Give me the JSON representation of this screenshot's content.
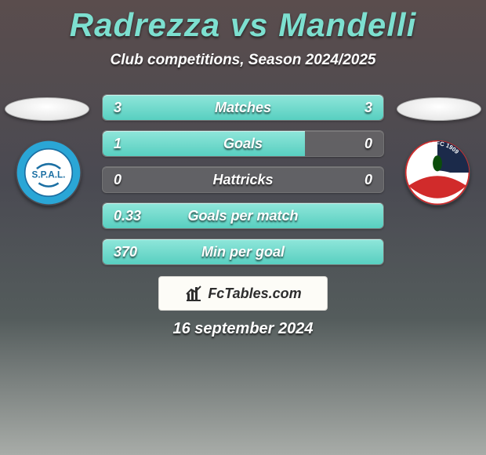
{
  "title": "Radrezza vs Mandelli",
  "subtitle": "Club competitions, Season 2024/2025",
  "date": "16 september 2024",
  "watermark": "FcTables.com",
  "colors": {
    "accent": "#66d4c6",
    "bar_fill": "#58cfc0",
    "bar_bg": "rgba(120,120,120,0.5)",
    "text": "#ffffff"
  },
  "rows": [
    {
      "label": "Matches",
      "left_text": "3",
      "right_text": "3",
      "left_pct": 50,
      "right_pct": 50
    },
    {
      "label": "Goals",
      "left_text": "1",
      "right_text": "0",
      "left_pct": 72,
      "right_pct": 0
    },
    {
      "label": "Hattricks",
      "left_text": "0",
      "right_text": "0",
      "left_pct": 0,
      "right_pct": 0
    },
    {
      "label": "Goals per match",
      "left_text": "0.33",
      "right_text": "",
      "left_pct": 100,
      "right_pct": 0
    },
    {
      "label": "Min per goal",
      "left_text": "370",
      "right_text": "",
      "left_pct": 100,
      "right_pct": 0
    }
  ],
  "badges": {
    "left": {
      "name": "SPAL",
      "ring_color": "#2aa6d6",
      "center_color": "#ffffff",
      "text": "S.P.A.L."
    },
    "right": {
      "name": "Carpi FC 1909",
      "ring_color": "#ffffff",
      "swoosh_color": "#d12b2b",
      "top_color": "#1b2a4a",
      "text": "CARPI FC 1909"
    }
  }
}
